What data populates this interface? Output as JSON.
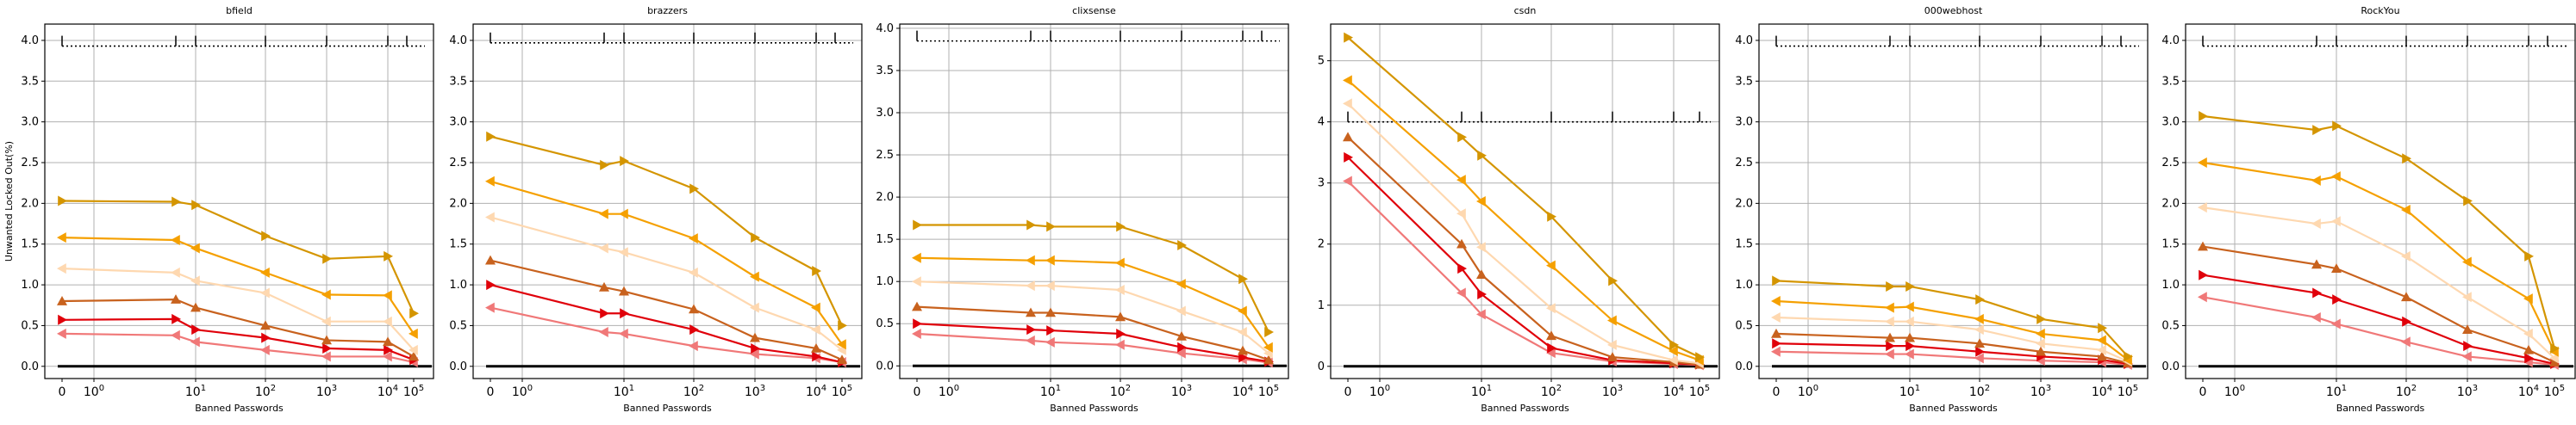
{
  "figure": {
    "ylabel": "Unwanted Locked Out(%)",
    "colors": {
      "s1": "#f07878",
      "s2": "#e0000a",
      "s3": "#c8621e",
      "s4": "#fed8b0",
      "s5": "#f5a000",
      "s6": "#d49500",
      "frame": "#000000",
      "grid": "#b0b0b0"
    }
  },
  "chart_data": [
    {
      "type": "line",
      "title": "bfield",
      "xlabel": "Banned Passwords",
      "ylabel": "Unwanted Locked Out(%)",
      "xscale": "symlog",
      "xticks": [
        "0",
        "10^0",
        "10^1",
        "10^2",
        "10^3",
        "10^4",
        "10^5"
      ],
      "yticks": [
        0.0,
        0.5,
        1.0,
        1.5,
        2.0,
        2.5,
        3.0,
        3.5,
        4.0
      ],
      "ylim": [
        -0.15,
        4.2
      ],
      "grid": true,
      "baseline": 0.0,
      "dotted_ref": 3.93,
      "x": [
        0,
        6,
        10,
        100,
        1000,
        10000,
        100000
      ],
      "series": [
        {
          "values": [
            0.4,
            0.38,
            0.3,
            0.2,
            0.12,
            0.12,
            0.05
          ]
        },
        {
          "values": [
            0.57,
            0.58,
            0.45,
            0.35,
            0.22,
            0.2,
            0.08
          ]
        },
        {
          "values": [
            0.8,
            0.82,
            0.72,
            0.5,
            0.32,
            0.3,
            0.12
          ]
        },
        {
          "values": [
            1.2,
            1.15,
            1.05,
            0.9,
            0.55,
            0.55,
            0.2
          ]
        },
        {
          "values": [
            1.58,
            1.55,
            1.45,
            1.15,
            0.88,
            0.87,
            0.4
          ]
        },
        {
          "values": [
            2.03,
            2.02,
            1.98,
            1.6,
            1.32,
            1.35,
            0.65
          ]
        }
      ]
    },
    {
      "type": "line",
      "title": "brazzers",
      "xlabel": "Banned Passwords",
      "xscale": "symlog",
      "xticks": [
        "0",
        "10^0",
        "10^1",
        "10^2",
        "10^3",
        "10^4",
        "10^5"
      ],
      "yticks": [
        0.0,
        0.5,
        1.0,
        1.5,
        2.0,
        2.5,
        3.0,
        3.5,
        4.0
      ],
      "ylim": [
        -0.15,
        4.2
      ],
      "grid": true,
      "baseline": 0.0,
      "dotted_ref": 3.97,
      "x": [
        0,
        6,
        10,
        100,
        1000,
        10000,
        100000
      ],
      "series": [
        {
          "values": [
            0.72,
            0.42,
            0.4,
            0.25,
            0.15,
            0.1,
            0.05
          ]
        },
        {
          "values": [
            1.0,
            0.65,
            0.65,
            0.45,
            0.22,
            0.12,
            0.05
          ]
        },
        {
          "values": [
            1.3,
            0.97,
            0.92,
            0.7,
            0.35,
            0.22,
            0.08
          ]
        },
        {
          "values": [
            1.83,
            1.45,
            1.4,
            1.15,
            0.72,
            0.45,
            0.2
          ]
        },
        {
          "values": [
            2.27,
            1.87,
            1.87,
            1.57,
            1.1,
            0.72,
            0.27
          ]
        },
        {
          "values": [
            2.82,
            2.47,
            2.52,
            2.18,
            1.58,
            1.17,
            0.5
          ]
        }
      ]
    },
    {
      "type": "line",
      "title": "clixsense",
      "xlabel": "Banned Passwords",
      "xscale": "symlog",
      "xticks": [
        "0",
        "10^0",
        "10^1",
        "10^2",
        "10^3",
        "10^4",
        "10^5"
      ],
      "yticks": [
        0.0,
        0.5,
        1.0,
        1.5,
        2.0,
        2.5,
        3.0,
        3.5,
        4.0
      ],
      "ylim": [
        -0.15,
        4.05
      ],
      "grid": true,
      "baseline": 0.0,
      "dotted_ref": 3.85,
      "x": [
        0,
        6,
        10,
        100,
        1000,
        10000,
        100000
      ],
      "series": [
        {
          "values": [
            0.38,
            0.3,
            0.28,
            0.25,
            0.15,
            0.08,
            0.04
          ]
        },
        {
          "values": [
            0.5,
            0.43,
            0.42,
            0.38,
            0.22,
            0.1,
            0.05
          ]
        },
        {
          "values": [
            0.7,
            0.63,
            0.63,
            0.58,
            0.35,
            0.18,
            0.07
          ]
        },
        {
          "values": [
            1.0,
            0.95,
            0.95,
            0.9,
            0.65,
            0.4,
            0.15
          ]
        },
        {
          "values": [
            1.28,
            1.25,
            1.25,
            1.22,
            0.97,
            0.65,
            0.22
          ]
        },
        {
          "values": [
            1.67,
            1.67,
            1.65,
            1.65,
            1.43,
            1.03,
            0.4
          ]
        }
      ]
    },
    {
      "type": "line",
      "title": "csdn",
      "xlabel": "Banned Passwords",
      "xscale": "symlog",
      "xticks": [
        "0",
        "10^0",
        "10^1",
        "10^2",
        "10^3",
        "10^4",
        "10^5"
      ],
      "yticks": [
        0,
        1,
        2,
        3,
        4,
        5
      ],
      "ylim": [
        -0.2,
        5.6
      ],
      "grid": true,
      "baseline": 0.0,
      "dotted_ref": 4.0,
      "x": [
        0,
        6,
        10,
        100,
        1000,
        10000,
        100000
      ],
      "series": [
        {
          "values": [
            3.03,
            1.2,
            0.85,
            0.22,
            0.08,
            0.04,
            0.02
          ]
        },
        {
          "values": [
            3.42,
            1.6,
            1.18,
            0.3,
            0.1,
            0.05,
            0.03
          ]
        },
        {
          "values": [
            3.75,
            2.0,
            1.5,
            0.5,
            0.15,
            0.07,
            0.03
          ]
        },
        {
          "values": [
            4.3,
            2.5,
            1.95,
            0.95,
            0.35,
            0.1,
            0.05
          ]
        },
        {
          "values": [
            4.68,
            3.05,
            2.7,
            1.65,
            0.75,
            0.25,
            0.1
          ]
        },
        {
          "values": [
            5.38,
            3.75,
            3.45,
            2.45,
            1.4,
            0.35,
            0.15
          ]
        }
      ]
    },
    {
      "type": "line",
      "title": "000webhost",
      "xlabel": "Banned Passwords",
      "xscale": "symlog",
      "xticks": [
        "0",
        "10^0",
        "10^1",
        "10^2",
        "10^3",
        "10^4",
        "10^5"
      ],
      "yticks": [
        0.0,
        0.5,
        1.0,
        1.5,
        2.0,
        2.5,
        3.0,
        3.5,
        4.0
      ],
      "ylim": [
        -0.15,
        4.2
      ],
      "grid": true,
      "baseline": 0.0,
      "dotted_ref": 3.93,
      "x": [
        0,
        6,
        10,
        100,
        1000,
        10000,
        100000
      ],
      "series": [
        {
          "values": [
            0.18,
            0.15,
            0.15,
            0.1,
            0.07,
            0.05,
            0.02
          ]
        },
        {
          "values": [
            0.28,
            0.25,
            0.25,
            0.18,
            0.12,
            0.08,
            0.03
          ]
        },
        {
          "values": [
            0.4,
            0.35,
            0.35,
            0.28,
            0.18,
            0.12,
            0.04
          ]
        },
        {
          "values": [
            0.6,
            0.55,
            0.55,
            0.45,
            0.28,
            0.2,
            0.06
          ]
        },
        {
          "values": [
            0.8,
            0.72,
            0.73,
            0.58,
            0.4,
            0.32,
            0.08
          ]
        },
        {
          "values": [
            1.05,
            0.98,
            0.98,
            0.82,
            0.58,
            0.47,
            0.12
          ]
        }
      ]
    },
    {
      "type": "line",
      "title": "RockYou",
      "xlabel": "Banned Passwords",
      "xscale": "symlog",
      "xticks": [
        "0",
        "10^0",
        "10^1",
        "10^2",
        "10^3",
        "10^4",
        "10^5"
      ],
      "yticks": [
        0.0,
        0.5,
        1.0,
        1.5,
        2.0,
        2.5,
        3.0,
        3.5,
        4.0
      ],
      "ylim": [
        -0.15,
        4.2
      ],
      "grid": true,
      "baseline": 0.0,
      "dotted_ref": 3.93,
      "x": [
        0,
        6,
        10,
        100,
        1000,
        10000,
        100000
      ],
      "series": [
        {
          "values": [
            0.85,
            0.6,
            0.52,
            0.3,
            0.12,
            0.05,
            0.02
          ]
        },
        {
          "values": [
            1.12,
            0.9,
            0.82,
            0.55,
            0.25,
            0.1,
            0.03
          ]
        },
        {
          "values": [
            1.47,
            1.25,
            1.2,
            0.85,
            0.45,
            0.2,
            0.05
          ]
        },
        {
          "values": [
            1.95,
            1.75,
            1.78,
            1.35,
            0.85,
            0.4,
            0.1
          ]
        },
        {
          "values": [
            2.5,
            2.28,
            2.33,
            1.92,
            1.28,
            0.83,
            0.18
          ]
        },
        {
          "values": [
            3.07,
            2.9,
            2.95,
            2.55,
            2.03,
            1.35,
            0.22
          ]
        }
      ]
    }
  ]
}
